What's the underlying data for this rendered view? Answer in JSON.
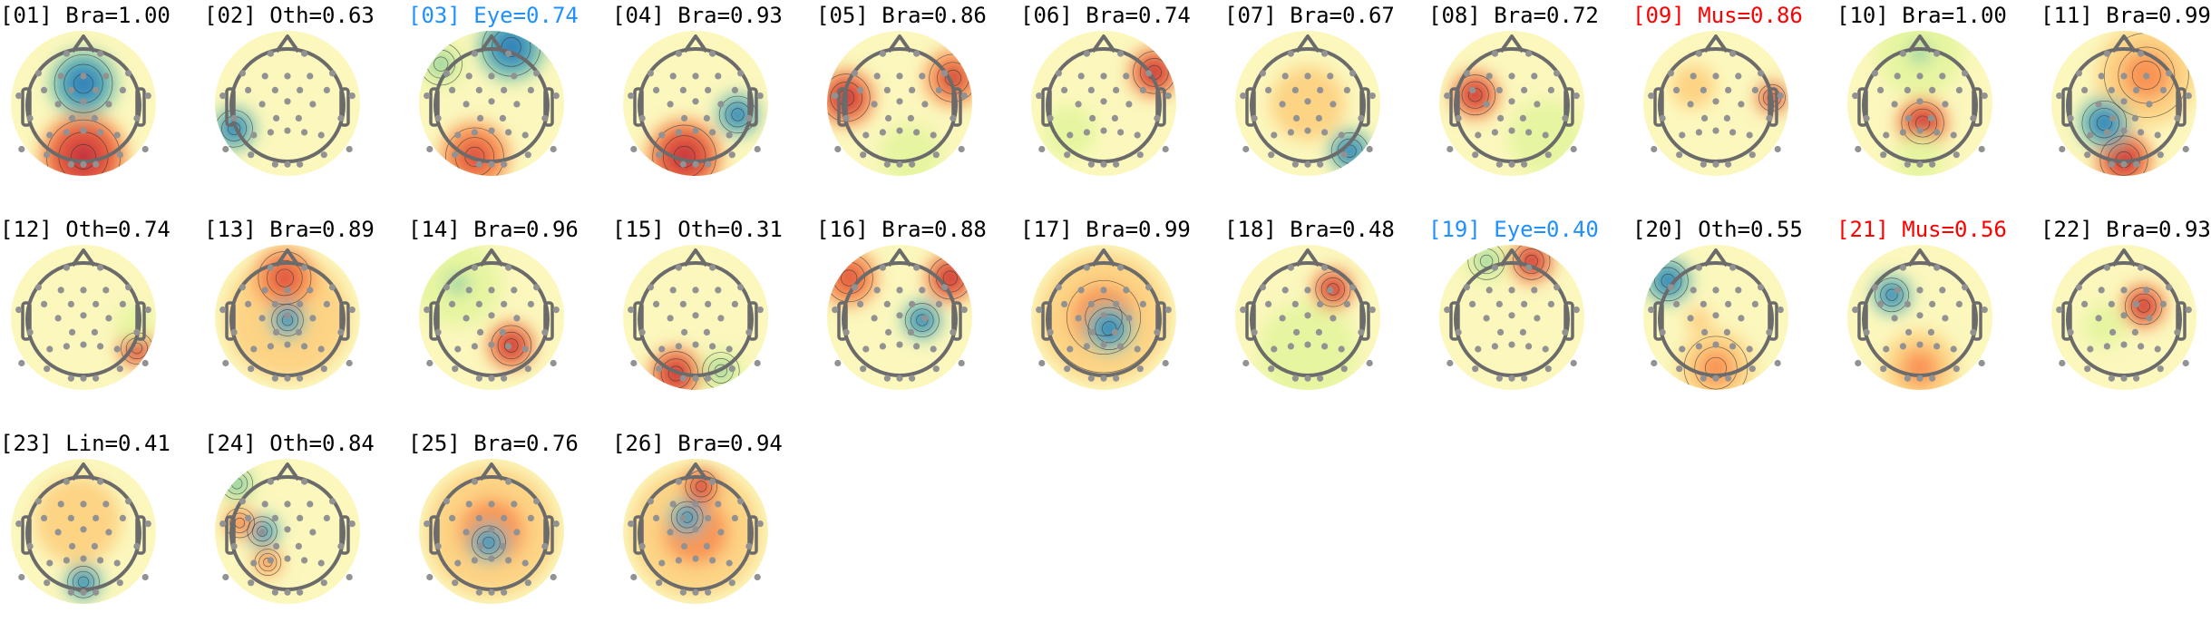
{
  "figure": {
    "layout": {
      "columns": 11,
      "rows": 3,
      "col_pitch": 225,
      "row_pitch": 236
    },
    "label_colors": {
      "default": "#000000",
      "Eye": "#1e90ff",
      "Mus": "#ff0000"
    },
    "colormap": [
      "#2b5fb3",
      "#3f9bbd",
      "#8fd0a4",
      "#e6f5a0",
      "#fffbbf",
      "#fdd384",
      "#f99454",
      "#e0523f",
      "#b0123f"
    ]
  },
  "chart_data": {
    "type": "heatmap",
    "subtype": "ICA component scalp topographies (topomap grid)",
    "title": "",
    "n_components": 26,
    "label_format": "[NN] Cls=prob",
    "class_abbreviations": [
      "Bra",
      "Oth",
      "Eye",
      "Mus",
      "Lin"
    ],
    "components": [
      {
        "id": "01",
        "label": "[01] Bra=1.00",
        "cls": "Bra",
        "prob": 1.0,
        "blobs": [
          {
            "x": 0.0,
            "y": -0.35,
            "r": 0.55,
            "v": -1.0
          },
          {
            "x": 0.0,
            "y": 0.95,
            "r": 0.7,
            "v": 1.0
          }
        ]
      },
      {
        "id": "02",
        "label": "[02] Oth=0.63",
        "cls": "Oth",
        "prob": 0.63,
        "blobs": [
          {
            "x": -0.95,
            "y": 0.45,
            "r": 0.35,
            "v": -1.0
          }
        ]
      },
      {
        "id": "03",
        "label": "[03] Eye=0.74",
        "cls": "Eye",
        "prob": 0.74,
        "blobs": [
          {
            "x": 0.35,
            "y": -1.0,
            "r": 0.55,
            "v": -1.0
          },
          {
            "x": -0.3,
            "y": 0.95,
            "r": 0.55,
            "v": 0.85
          },
          {
            "x": -0.9,
            "y": -0.7,
            "r": 0.4,
            "v": -0.5
          }
        ]
      },
      {
        "id": "04",
        "label": "[04] Bra=0.93",
        "cls": "Bra",
        "prob": 0.93,
        "blobs": [
          {
            "x": 0.75,
            "y": 0.2,
            "r": 0.35,
            "v": -1.0
          },
          {
            "x": -0.2,
            "y": 0.95,
            "r": 0.6,
            "v": 1.0
          }
        ]
      },
      {
        "id": "05",
        "label": "[05] Bra=0.86",
        "cls": "Bra",
        "prob": 0.86,
        "blobs": [
          {
            "x": -0.95,
            "y": -0.1,
            "r": 0.45,
            "v": 1.0
          },
          {
            "x": 0.95,
            "y": -0.45,
            "r": 0.45,
            "v": 0.9
          },
          {
            "x": 0.2,
            "y": 0.9,
            "r": 0.5,
            "v": -0.35
          }
        ]
      },
      {
        "id": "06",
        "label": "[06] Bra=0.74",
        "cls": "Bra",
        "prob": 0.74,
        "blobs": [
          {
            "x": 0.9,
            "y": -0.55,
            "r": 0.4,
            "v": 1.0
          },
          {
            "x": -0.6,
            "y": 0.5,
            "r": 0.6,
            "v": -0.2
          }
        ]
      },
      {
        "id": "07",
        "label": "[07] Bra=0.67",
        "cls": "Bra",
        "prob": 0.67,
        "blobs": [
          {
            "x": 0.75,
            "y": 0.85,
            "r": 0.35,
            "v": -1.0
          },
          {
            "x": 0.0,
            "y": 0.0,
            "r": 0.6,
            "v": 0.35
          }
        ]
      },
      {
        "id": "08",
        "label": "[08] Bra=0.72",
        "cls": "Bra",
        "prob": 0.72,
        "blobs": [
          {
            "x": -0.65,
            "y": -0.15,
            "r": 0.38,
            "v": 1.0
          },
          {
            "x": 0.6,
            "y": 0.6,
            "r": 0.6,
            "v": -0.25
          }
        ]
      },
      {
        "id": "09",
        "label": "[09] Mus=0.86",
        "cls": "Mus",
        "prob": 0.86,
        "blobs": [
          {
            "x": 1.0,
            "y": -0.1,
            "r": 0.25,
            "v": 1.0
          },
          {
            "x": -0.4,
            "y": -0.3,
            "r": 0.5,
            "v": 0.2
          }
        ]
      },
      {
        "id": "10",
        "label": "[10] Bra=1.00",
        "cls": "Bra",
        "prob": 1.0,
        "blobs": [
          {
            "x": 0.05,
            "y": 0.35,
            "r": 0.4,
            "v": 1.0
          },
          {
            "x": 0.0,
            "y": -0.9,
            "r": 0.7,
            "v": -0.4
          },
          {
            "x": 0.0,
            "y": 1.0,
            "r": 0.4,
            "v": -0.35
          }
        ]
      },
      {
        "id": "11",
        "label": "[11] Bra=0.99",
        "cls": "Bra",
        "prob": 0.99,
        "blobs": [
          {
            "x": -0.35,
            "y": 0.35,
            "r": 0.42,
            "v": -1.0
          },
          {
            "x": 0.0,
            "y": 1.0,
            "r": 0.45,
            "v": 1.0
          },
          {
            "x": 0.4,
            "y": -0.5,
            "r": 0.8,
            "v": 0.55
          }
        ]
      },
      {
        "id": "12",
        "label": "[12] Oth=0.74",
        "cls": "Oth",
        "prob": 0.74,
        "blobs": [
          {
            "x": 0.95,
            "y": 0.55,
            "r": 0.3,
            "v": 1.0
          },
          {
            "x": 0.9,
            "y": 0.1,
            "r": 0.3,
            "v": -0.3
          }
        ]
      },
      {
        "id": "13",
        "label": "[13] Bra=0.89",
        "cls": "Bra",
        "prob": 0.89,
        "blobs": [
          {
            "x": 0.0,
            "y": 0.05,
            "r": 0.3,
            "v": -1.0
          },
          {
            "x": -0.05,
            "y": -0.7,
            "r": 0.5,
            "v": 0.8
          },
          {
            "x": 0.0,
            "y": 0.0,
            "r": 1.0,
            "v": 0.3
          }
        ]
      },
      {
        "id": "14",
        "label": "[14] Bra=0.96",
        "cls": "Bra",
        "prob": 0.96,
        "blobs": [
          {
            "x": 0.35,
            "y": 0.5,
            "r": 0.38,
            "v": 1.0
          },
          {
            "x": -0.6,
            "y": -0.6,
            "r": 0.7,
            "v": -0.4
          }
        ]
      },
      {
        "id": "15",
        "label": "[15] Oth=0.31",
        "cls": "Oth",
        "prob": 0.31,
        "blobs": [
          {
            "x": -0.35,
            "y": 1.0,
            "r": 0.42,
            "v": 1.0
          },
          {
            "x": 0.45,
            "y": 0.95,
            "r": 0.35,
            "v": -0.55
          }
        ]
      },
      {
        "id": "16",
        "label": "[16] Bra=0.88",
        "cls": "Bra",
        "prob": 0.88,
        "blobs": [
          {
            "x": 0.4,
            "y": 0.05,
            "r": 0.32,
            "v": -1.0
          },
          {
            "x": -0.9,
            "y": -0.7,
            "r": 0.45,
            "v": 0.8
          },
          {
            "x": 0.9,
            "y": -0.7,
            "r": 0.4,
            "v": 1.0
          }
        ]
      },
      {
        "id": "17",
        "label": "[17] Bra=0.99",
        "cls": "Bra",
        "prob": 0.99,
        "blobs": [
          {
            "x": 0.1,
            "y": 0.2,
            "r": 0.4,
            "v": -1.0
          },
          {
            "x": 0.0,
            "y": 0.0,
            "r": 1.05,
            "v": 0.55
          }
        ]
      },
      {
        "id": "18",
        "label": "[18] Bra=0.48",
        "cls": "Bra",
        "prob": 0.48,
        "blobs": [
          {
            "x": 0.45,
            "y": -0.5,
            "r": 0.33,
            "v": 1.0
          },
          {
            "x": 0.0,
            "y": 0.6,
            "r": 0.8,
            "v": -0.25
          }
        ]
      },
      {
        "id": "19",
        "label": "[19] Eye=0.40",
        "cls": "Eye",
        "prob": 0.4,
        "blobs": [
          {
            "x": 0.35,
            "y": -1.0,
            "r": 0.35,
            "v": 1.0
          },
          {
            "x": -0.45,
            "y": -1.0,
            "r": 0.35,
            "v": -0.55
          }
        ]
      },
      {
        "id": "20",
        "label": "[20] Oth=0.55",
        "cls": "Oth",
        "prob": 0.55,
        "blobs": [
          {
            "x": -0.85,
            "y": -0.65,
            "r": 0.38,
            "v": -1.0
          },
          {
            "x": -0.3,
            "y": 0.05,
            "r": 0.2,
            "v": 0.4
          },
          {
            "x": 0.0,
            "y": 0.9,
            "r": 0.6,
            "v": 0.5
          }
        ]
      },
      {
        "id": "21",
        "label": "[21] Mus=0.56",
        "cls": "Mus",
        "prob": 0.56,
        "blobs": [
          {
            "x": -0.5,
            "y": -0.4,
            "r": 0.32,
            "v": -1.0
          },
          {
            "x": 0.0,
            "y": 0.9,
            "r": 0.6,
            "v": 0.45
          }
        ]
      },
      {
        "id": "22",
        "label": "[22] Bra=0.93",
        "cls": "Bra",
        "prob": 0.93,
        "blobs": [
          {
            "x": 0.35,
            "y": -0.2,
            "r": 0.35,
            "v": 1.0
          },
          {
            "x": -0.35,
            "y": 0.15,
            "r": 0.35,
            "v": -0.25
          }
        ]
      },
      {
        "id": "23",
        "label": "[23] Lin=0.41",
        "cls": "Lin",
        "prob": 0.41,
        "blobs": [
          {
            "x": 0.0,
            "y": 0.9,
            "r": 0.3,
            "v": -1.0
          },
          {
            "x": -0.1,
            "y": -0.2,
            "r": 0.7,
            "v": 0.25
          }
        ]
      },
      {
        "id": "24",
        "label": "[24] Oth=0.84",
        "cls": "Oth",
        "prob": 0.84,
        "blobs": [
          {
            "x": -0.45,
            "y": 0.0,
            "r": 0.28,
            "v": -1.0
          },
          {
            "x": -0.85,
            "y": -0.15,
            "r": 0.28,
            "v": 0.7
          },
          {
            "x": -0.35,
            "y": 0.55,
            "r": 0.25,
            "v": 0.6
          },
          {
            "x": -0.9,
            "y": -0.85,
            "r": 0.3,
            "v": -0.6
          }
        ]
      },
      {
        "id": "25",
        "label": "[25] Bra=0.76",
        "cls": "Bra",
        "prob": 0.76,
        "blobs": [
          {
            "x": -0.05,
            "y": 0.2,
            "r": 0.32,
            "v": -1.0
          },
          {
            "x": 0.0,
            "y": 0.0,
            "r": 1.05,
            "v": 0.45
          }
        ]
      },
      {
        "id": "26",
        "label": "[26] Bra=0.94",
        "cls": "Bra",
        "prob": 0.94,
        "blobs": [
          {
            "x": -0.15,
            "y": -0.25,
            "r": 0.3,
            "v": -1.0
          },
          {
            "x": 0.1,
            "y": -0.8,
            "r": 0.3,
            "v": 1.0
          },
          {
            "x": 0.0,
            "y": 0.0,
            "r": 1.05,
            "v": 0.45
          }
        ]
      }
    ],
    "electrodes_note": "grey dots mark ~32 EEG electrode positions on each scalp map"
  }
}
